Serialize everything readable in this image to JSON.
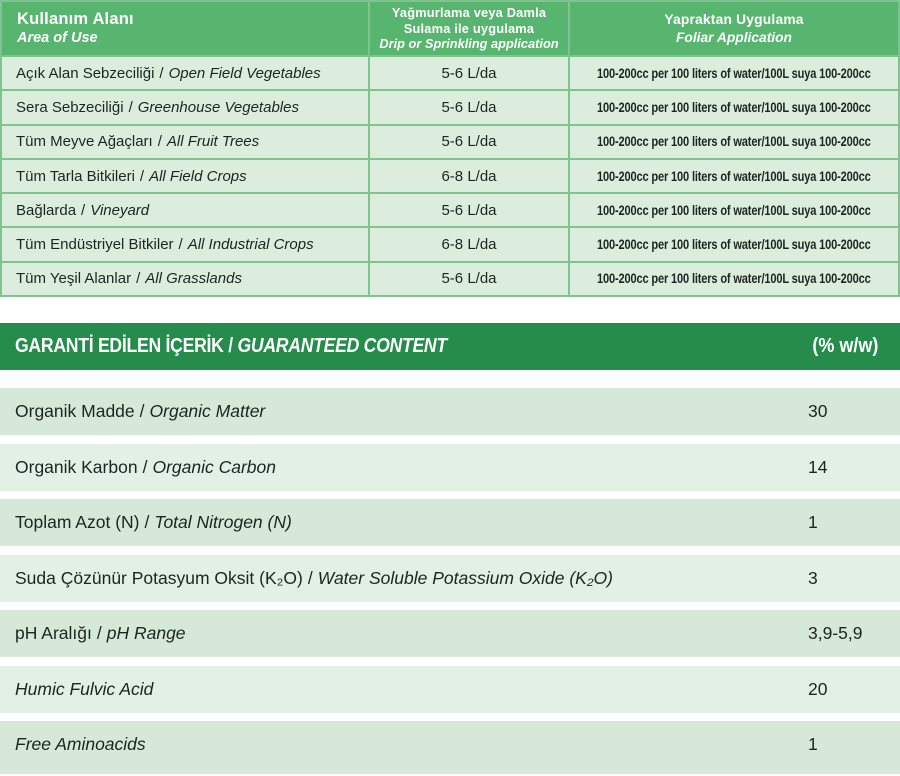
{
  "colors": {
    "header_green": "#58b56f",
    "table_border_green": "#7fc38e",
    "usage_row_bg": "#dcedde",
    "content_header_green": "#268c4b",
    "band_dark": "#d6e8d8",
    "band_light": "#e3f0e5",
    "text_dark": "#1b261e",
    "header_text": "#ffffff"
  },
  "usage_table": {
    "separator": "/",
    "columns": {
      "area": {
        "tr": "Kullanım Alanı",
        "en": "Area of Use"
      },
      "drip": {
        "tr_line1": "Yağmurlama veya Damla",
        "tr_line2": "Sulama ile uygulama",
        "en": "Drip or Sprinkling application"
      },
      "foliar": {
        "tr": "Yapraktan Uygulama",
        "en": "Foliar Application"
      }
    },
    "rows": [
      {
        "area_tr": "Açık Alan Sebzeciliği",
        "area_en": "Open Field Vegetables",
        "rate": "5-6 L/da",
        "foliar": "100-200cc per 100 liters of water/100L suya 100-200cc"
      },
      {
        "area_tr": "Sera Sebzeciliği",
        "area_en": "Greenhouse Vegetables",
        "rate": "5-6 L/da",
        "foliar": "100-200cc per 100 liters of water/100L suya 100-200cc"
      },
      {
        "area_tr": "Tüm Meyve Ağaçları",
        "area_en": "All Fruit Trees",
        "rate": "5-6 L/da",
        "foliar": "100-200cc per 100 liters of water/100L suya 100-200cc"
      },
      {
        "area_tr": "Tüm Tarla Bitkileri",
        "area_en": "All Field Crops",
        "rate": "6-8 L/da",
        "foliar": "100-200cc per 100 liters of water/100L suya 100-200cc"
      },
      {
        "area_tr": "Bağlarda",
        "area_en": "Vineyard",
        "rate": "5-6 L/da",
        "foliar": "100-200cc per 100 liters of water/100L suya 100-200cc"
      },
      {
        "area_tr": "Tüm Endüstriyel Bitkiler",
        "area_en": "All Industrial Crops",
        "rate": "6-8 L/da",
        "foliar": "100-200cc per 100 liters of water/100L suya 100-200cc"
      },
      {
        "area_tr": "Tüm Yeşil Alanlar",
        "area_en": "All Grasslands",
        "rate": "5-6 L/da",
        "foliar": "100-200cc per 100 liters of water/100L suya 100-200cc"
      }
    ]
  },
  "content_table": {
    "title_tr": "GARANTİ EDİLEN İÇERİK /",
    "title_en": "GUARANTEED CONTENT",
    "unit": "(% w/w)",
    "separator": "/",
    "rows": [
      {
        "tr": "Organik Madde",
        "en": "Organic Matter",
        "value": "30"
      },
      {
        "tr": "Organik Karbon",
        "en": "Organic Carbon",
        "value": "14"
      },
      {
        "tr": "Toplam Azot (N)",
        "en": "Total Nitrogen (N)",
        "value": "1"
      },
      {
        "tr": "Suda Çözünür Potasyum Oksit (K₂O)",
        "en": "Water Soluble Potassium Oxide (K₂O)",
        "value": "3"
      },
      {
        "tr": "pH Aralığı",
        "en": "pH Range",
        "value": "3,9-5,9"
      },
      {
        "en": "Humic Fulvic Acid",
        "value": "20"
      },
      {
        "en": "Free Aminoacids",
        "value": "1"
      }
    ]
  }
}
